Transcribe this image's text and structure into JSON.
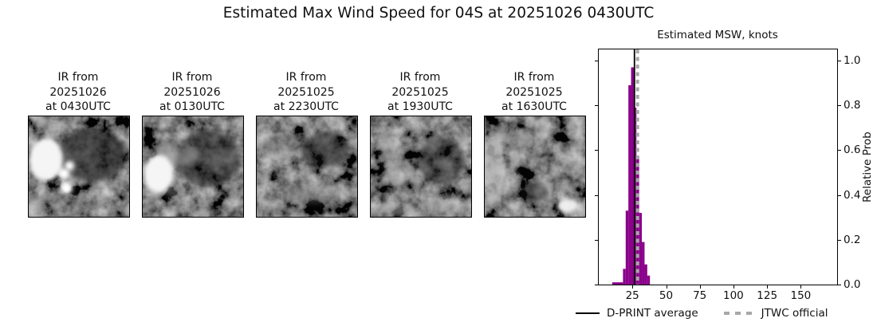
{
  "figure": {
    "title": "Estimated Max Wind Speed for 04S at 20251026 0430UTC"
  },
  "ir_panels": [
    {
      "line1": "IR from",
      "line2": "20251026",
      "line3": "at 0430UTC"
    },
    {
      "line1": "IR from",
      "line2": "20251026",
      "line3": "at 0130UTC"
    },
    {
      "line1": "IR from",
      "line2": "20251025",
      "line3": "at 2230UTC"
    },
    {
      "line1": "IR from",
      "line2": "20251025",
      "line3": "at 1930UTC"
    },
    {
      "line1": "IR from",
      "line2": "20251025",
      "line3": "at 1630UTC"
    }
  ],
  "histogram": {
    "title": "Estimated MSW, knots",
    "ylabel": "Relative Prob",
    "legend_dprint": "D-PRINT average",
    "legend_jtwc": "JTWC official"
  },
  "chart_data": {
    "type": "bar",
    "subtype": "histogram",
    "title": "Estimated MSW, knots",
    "xlabel": "Estimated MSW, knots",
    "ylabel": "Relative Prob",
    "bin_edges": [
      10,
      18,
      20,
      22,
      24,
      26,
      28,
      30,
      32,
      34,
      36,
      38
    ],
    "values": [
      0.01,
      0.07,
      0.33,
      0.89,
      0.97,
      0.79,
      0.57,
      0.32,
      0.19,
      0.09,
      0.04
    ],
    "xlim": [
      0,
      177
    ],
    "ylim": [
      0,
      1.05
    ],
    "xticks": [
      25,
      50,
      75,
      100,
      125,
      150
    ],
    "yticks": [
      0.0,
      0.2,
      0.4,
      0.6,
      0.8,
      1.0
    ],
    "grid": false,
    "bar_color": "#8a008a",
    "line_color_dprint": "#000000",
    "line_color_jtwc": "#a6a6a6",
    "vlines": {
      "d_print_average": 26.5,
      "jtwc_official": 28.8
    },
    "legend": [
      "D-PRINT average",
      "JTWC official"
    ],
    "legend_position": "below-axes"
  }
}
